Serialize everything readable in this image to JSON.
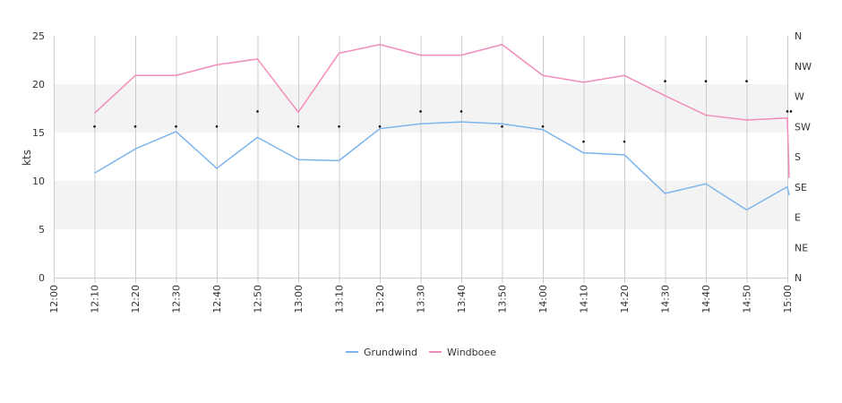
{
  "chart_data": {
    "type": "line",
    "ylabel": "kts",
    "ylim": [
      0,
      25
    ],
    "y_ticks": [
      "0",
      "5",
      "10",
      "15",
      "20",
      "25"
    ],
    "y_right_ticks": [
      "N",
      "NE",
      "E",
      "SE",
      "S",
      "SW",
      "W",
      "NW",
      "N"
    ],
    "x_ticks": [
      "12:00",
      "12:10",
      "12:20",
      "12:30",
      "12:40",
      "12:50",
      "13:00",
      "13:10",
      "13:20",
      "13:30",
      "13:40",
      "13:50",
      "14:00",
      "14:10",
      "14:20",
      "14:30",
      "14:40",
      "14:50",
      "15:00"
    ],
    "shaded_bands": [
      [
        5,
        10
      ],
      [
        15,
        20
      ]
    ],
    "series": [
      {
        "name": "Grundwind",
        "color": "#7cb5ec",
        "x": [
          "12:10",
          "12:20",
          "12:30",
          "12:40",
          "12:50",
          "13:00",
          "13:10",
          "13:20",
          "13:30",
          "13:40",
          "13:50",
          "14:00",
          "14:10",
          "14:20",
          "14:30",
          "14:40",
          "14:50",
          "15:00",
          "15:00"
        ],
        "values": [
          10.8,
          13.3,
          15.1,
          11.3,
          14.5,
          12.2,
          12.1,
          15.4,
          15.9,
          16.1,
          15.9,
          15.3,
          12.9,
          12.7,
          8.7,
          9.7,
          7.0,
          9.4,
          8.5
        ]
      },
      {
        "name": "Windboee",
        "color": "#f28cbb",
        "x": [
          "12:10",
          "12:20",
          "12:30",
          "12:40",
          "12:50",
          "13:00",
          "13:10",
          "13:20",
          "13:30",
          "13:40",
          "13:50",
          "14:00",
          "14:10",
          "14:20",
          "14:30",
          "14:40",
          "14:50",
          "15:00",
          "15:00"
        ],
        "values": [
          17.0,
          20.9,
          20.9,
          22.0,
          22.6,
          17.1,
          23.2,
          24.1,
          23.0,
          23.0,
          24.1,
          20.9,
          20.2,
          20.9,
          18.8,
          16.8,
          16.3,
          16.5,
          10.3
        ]
      }
    ],
    "direction_markers": {
      "x": [
        "12:10",
        "12:20",
        "12:30",
        "12:40",
        "12:50",
        "13:00",
        "13:10",
        "13:20",
        "13:30",
        "13:40",
        "13:50",
        "14:00",
        "14:10",
        "14:20",
        "14:30",
        "14:40",
        "14:50",
        "15:00",
        "15:00"
      ],
      "direction": [
        "SW",
        "SW",
        "SW",
        "SW",
        "SW/W",
        "SW",
        "SW",
        "SW",
        "SW/W",
        "SW/W",
        "SW",
        "SW",
        "SW/S",
        "SW/S",
        "W/NW",
        "W/NW",
        "W/NW",
        "SW/W",
        "SW/W"
      ]
    },
    "legend": [
      "Grundwind",
      "Windboee"
    ],
    "legend_position": "bottom-center",
    "grid": true
  }
}
